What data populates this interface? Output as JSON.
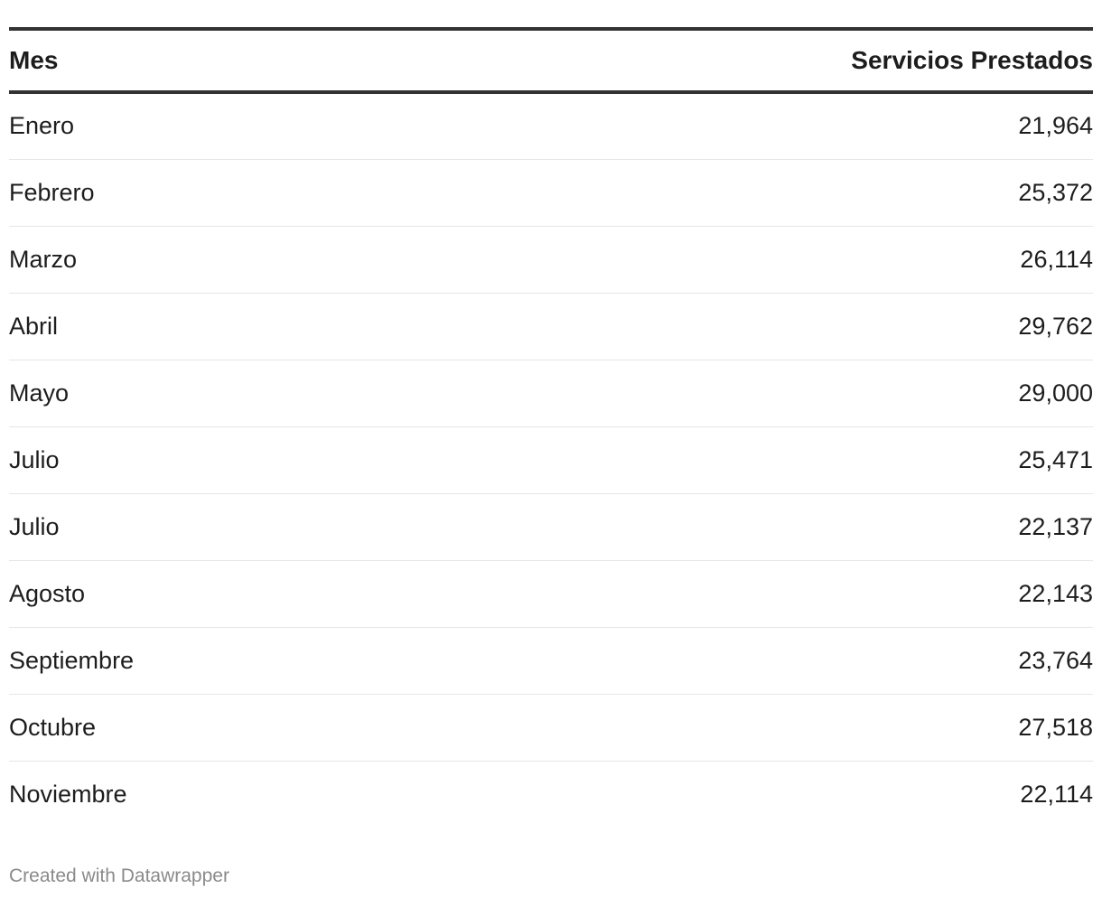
{
  "chart_data": {
    "type": "table",
    "columns": [
      "Mes",
      "Servicios Prestados"
    ],
    "rows": [
      {
        "month": "Enero",
        "value": "21,964"
      },
      {
        "month": "Febrero",
        "value": "25,372"
      },
      {
        "month": "Marzo",
        "value": "26,114"
      },
      {
        "month": "Abril",
        "value": "29,762"
      },
      {
        "month": "Mayo",
        "value": "29,000"
      },
      {
        "month": "Julio",
        "value": "25,471"
      },
      {
        "month": "Julio",
        "value": "22,137"
      },
      {
        "month": "Agosto",
        "value": "22,143"
      },
      {
        "month": "Septiembre",
        "value": "23,764"
      },
      {
        "month": "Octubre",
        "value": "27,518"
      },
      {
        "month": "Noviembre",
        "value": "22,114"
      }
    ]
  },
  "footer": {
    "credit": "Created with Datawrapper"
  }
}
